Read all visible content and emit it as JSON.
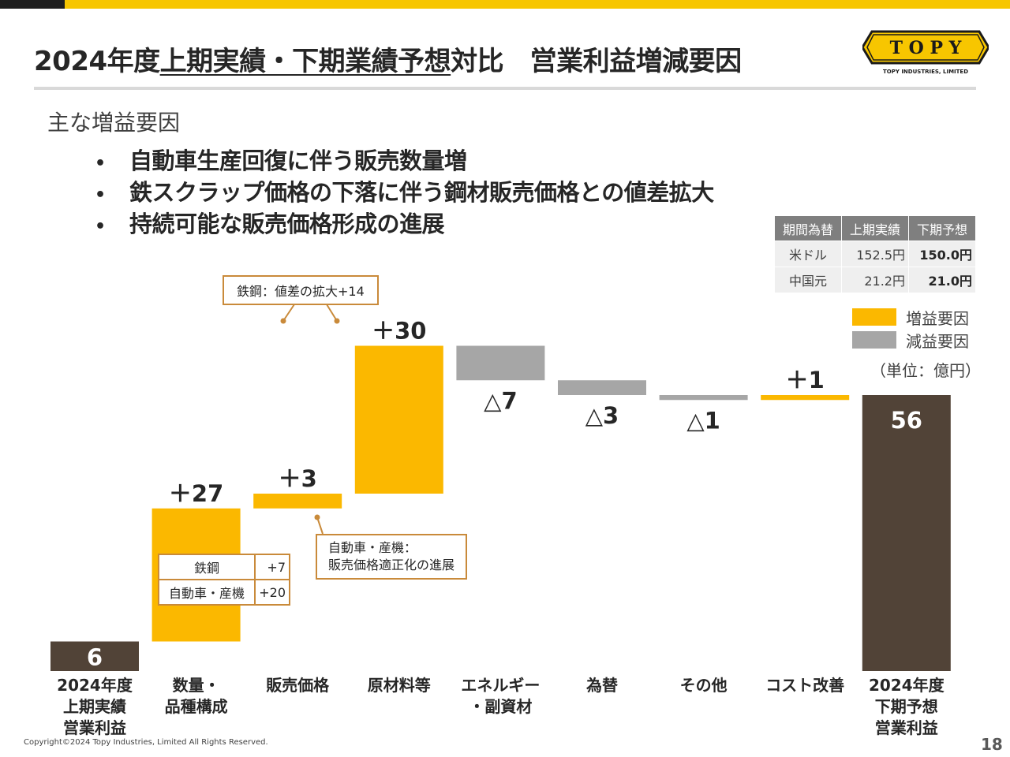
{
  "slide": {
    "title_pre": "2024年度",
    "title_underlined": "上期実績・下期業績予想",
    "title_post": "対比　営業利益増減要因",
    "logo_text": "T O P Y",
    "logo_subtext": "TOPY INDUSTRIES, LIMITED",
    "subtitle": "主な増益要因",
    "bullet_mark": "•",
    "bullets": [
      "自動車生産回復に伴う販売数量増",
      "鉄スクラップ価格の下落に伴う鋼材販売価格との値差拡大",
      "持続可能な販売価格形成の進展"
    ],
    "copyright": "Copyright©2024 Topy Industries, Limited All Rights Reserved.",
    "page_number": "18"
  },
  "fx_table": {
    "headers": [
      "期間為替",
      "上期実績",
      "下期予想"
    ],
    "rows": [
      [
        "米ドル",
        "152.5円",
        "150.0円"
      ],
      [
        "中国元",
        "21.2円",
        "21.0円"
      ]
    ]
  },
  "legend": {
    "increase": "増益要因",
    "decrease": "減益要因",
    "unit": "（単位：億円）"
  },
  "callouts": {
    "steel_spread": "鉄鋼：値差の拡大+14",
    "price_line1": "自動車・産機：",
    "price_line2": "販売価格適正化の進展"
  },
  "breakdown": [
    {
      "label": "鉄鋼",
      "value": "+7"
    },
    {
      "label": "自動車・産機",
      "value": "+20"
    }
  ],
  "colors": {
    "increase": "#fbb800",
    "decrease": "#a6a6a6",
    "total": "#514337",
    "brand_gold": "#f7c600",
    "callout_border": "#c98a3a"
  },
  "chart_data": {
    "type": "bar",
    "subtype": "waterfall",
    "categories": [
      [
        "2024年度",
        "上期実績",
        "営業利益"
      ],
      [
        "数量・",
        "品種構成"
      ],
      [
        "販売価格"
      ],
      [
        "原材料等"
      ],
      [
        "エネルギー",
        "・副資材"
      ],
      [
        "為替"
      ],
      [
        "その他"
      ],
      [
        "コスト改善"
      ],
      [
        "2024年度",
        "下期予想",
        "営業利益"
      ]
    ],
    "values": [
      6,
      27,
      3,
      30,
      -7,
      -3,
      -1,
      1,
      56
    ],
    "kinds": [
      "total",
      "increase",
      "increase",
      "increase",
      "decrease",
      "decrease",
      "decrease",
      "increase",
      "total"
    ],
    "value_labels": [
      "6",
      "＋27",
      "＋3",
      "＋30",
      "△7",
      "△3",
      "△1",
      "＋1",
      "56"
    ],
    "ylim": [
      0,
      62
    ],
    "grid": false
  }
}
